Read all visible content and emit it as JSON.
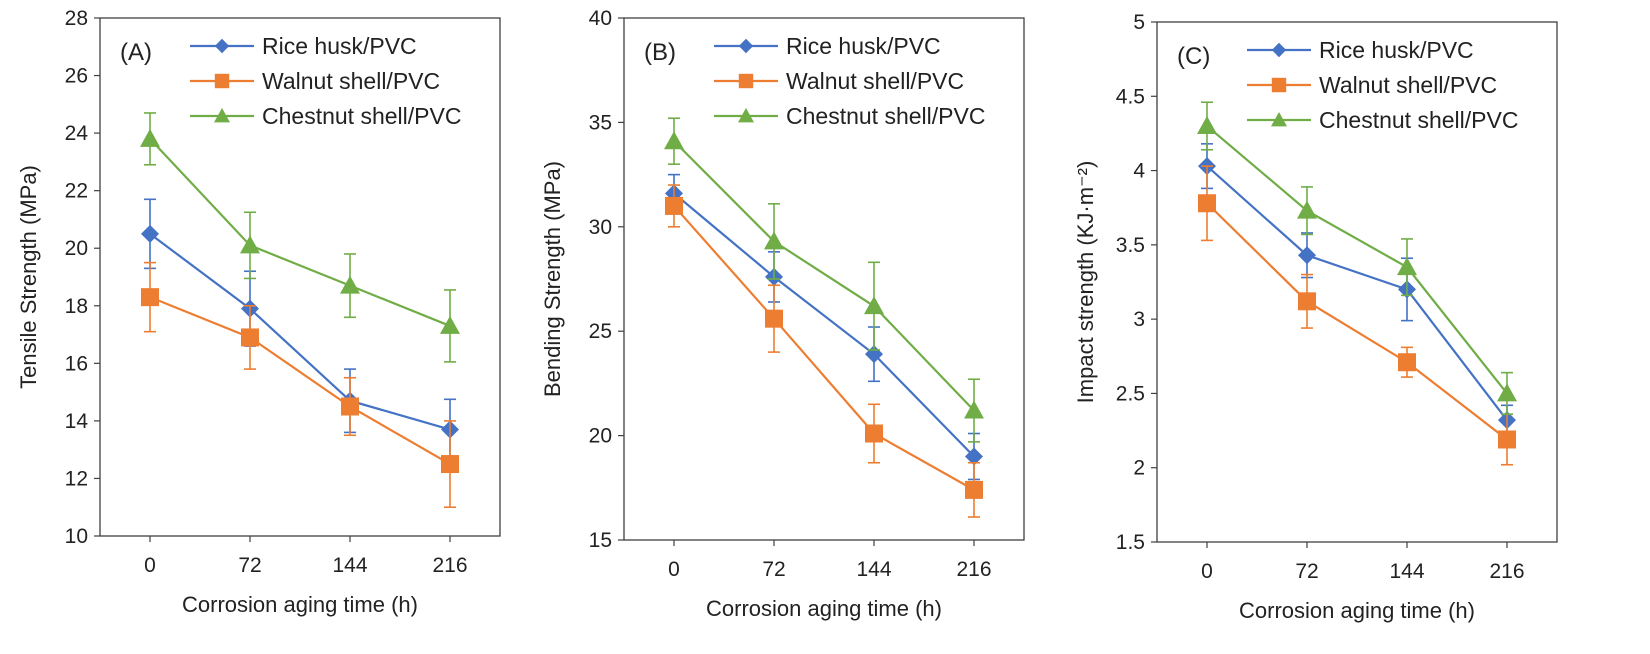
{
  "chart_data": [
    {
      "type": "line",
      "panel_label": "(A)",
      "xlabel": "Corrosion aging time  (h)",
      "ylabel": "Tensile Strength (MPa)",
      "categories": [
        "0",
        "72",
        "144",
        "216"
      ],
      "ylim": [
        10,
        28
      ],
      "yticks": [
        "10",
        "12",
        "14",
        "16",
        "18",
        "20",
        "22",
        "24",
        "26",
        "28"
      ],
      "grid": false,
      "legend": "top-right",
      "series": [
        {
          "name": "Rice husk/PVC",
          "marker": "diamond",
          "values": [
            20.5,
            17.9,
            14.7,
            13.7
          ],
          "errors": [
            1.2,
            1.3,
            1.1,
            1.05
          ]
        },
        {
          "name": "Walnut shell/PVC",
          "marker": "square",
          "values": [
            18.3,
            16.9,
            14.5,
            12.5
          ],
          "errors": [
            1.2,
            1.1,
            1.0,
            1.5
          ]
        },
        {
          "name": "Chestnut shell/PVC",
          "marker": "triangle",
          "values": [
            23.8,
            20.1,
            18.7,
            17.3
          ],
          "errors": [
            0.9,
            1.15,
            1.1,
            1.25
          ]
        }
      ]
    },
    {
      "type": "line",
      "panel_label": "(B)",
      "xlabel": "Corrosion aging time  (h)",
      "ylabel": "Bending Strength (MPa)",
      "categories": [
        "0",
        "72",
        "144",
        "216"
      ],
      "ylim": [
        15,
        40
      ],
      "yticks": [
        "15",
        "20",
        "25",
        "30",
        "35",
        "40"
      ],
      "grid": false,
      "legend": "top-right",
      "series": [
        {
          "name": "Rice husk/PVC",
          "marker": "diamond",
          "values": [
            31.6,
            27.6,
            23.9,
            19.0
          ],
          "errors": [
            0.9,
            1.2,
            1.3,
            1.1
          ]
        },
        {
          "name": "Walnut shell/PVC",
          "marker": "square",
          "values": [
            31.0,
            25.6,
            20.1,
            17.4
          ],
          "errors": [
            1.0,
            1.6,
            1.4,
            1.3
          ]
        },
        {
          "name": "Chestnut shell/PVC",
          "marker": "triangle",
          "values": [
            34.1,
            29.3,
            26.2,
            21.2
          ],
          "errors": [
            1.1,
            1.8,
            2.1,
            1.5
          ]
        }
      ]
    },
    {
      "type": "line",
      "panel_label": "(C)",
      "xlabel": "Corrosion aging time  (h)",
      "ylabel": "Impact strength (KJ·m⁻²)",
      "categories": [
        "0",
        "72",
        "144",
        "216"
      ],
      "ylim": [
        1.5,
        5
      ],
      "yticks": [
        "1.5",
        "2",
        "2.5",
        "3",
        "3.5",
        "4",
        "4.5",
        "5"
      ],
      "grid": false,
      "legend": "top-right",
      "series": [
        {
          "name": "Rice husk/PVC",
          "marker": "diamond",
          "values": [
            4.03,
            3.43,
            3.2,
            2.32
          ],
          "errors": [
            0.15,
            0.15,
            0.21,
            0.1
          ]
        },
        {
          "name": "Walnut shell/PVC",
          "marker": "square",
          "values": [
            3.78,
            3.12,
            2.71,
            2.19
          ],
          "errors": [
            0.25,
            0.18,
            0.1,
            0.17
          ]
        },
        {
          "name": "Chestnut shell/PVC",
          "marker": "triangle",
          "values": [
            4.3,
            3.73,
            3.35,
            2.5
          ],
          "errors": [
            0.16,
            0.16,
            0.19,
            0.14
          ]
        }
      ]
    }
  ],
  "colors": {
    "Rice husk/PVC": "#4472C4",
    "Walnut shell/PVC": "#ED7D31",
    "Chestnut shell/PVC": "#70AD47",
    "axis": "#404040"
  }
}
